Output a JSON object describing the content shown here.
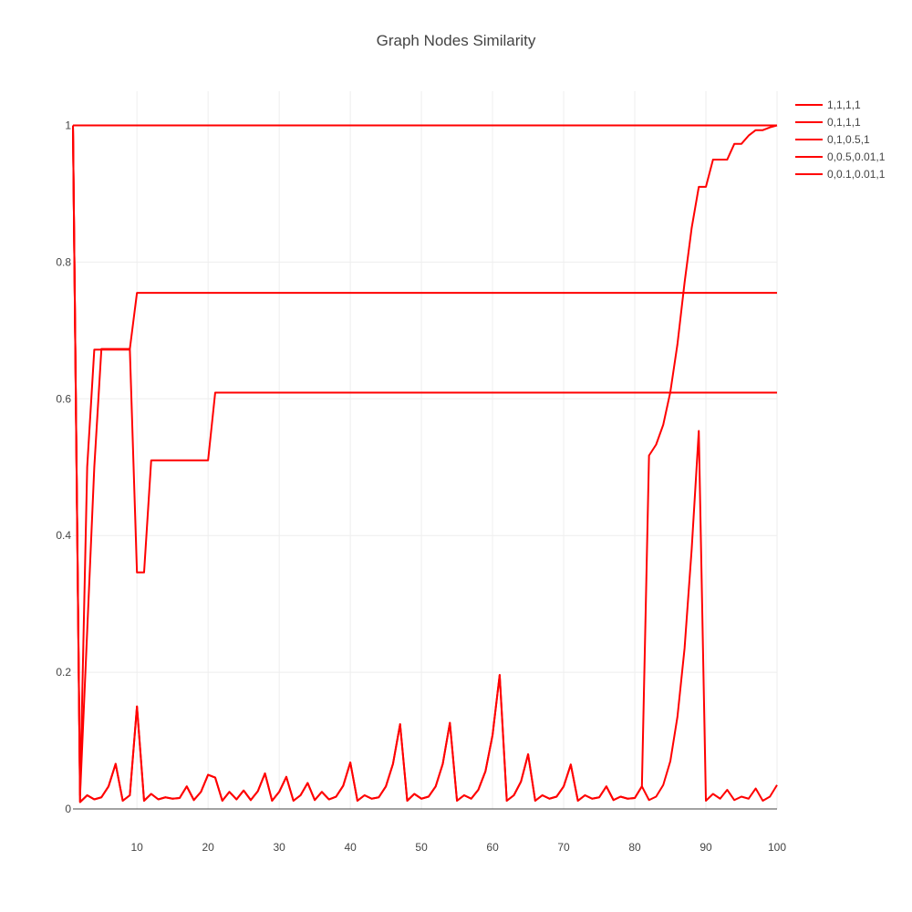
{
  "chart_data": {
    "type": "line",
    "title": "Graph Nodes Similarity",
    "xlabel": "",
    "ylabel": "",
    "xlim": [
      1,
      100
    ],
    "ylim": [
      0,
      1.05
    ],
    "x_ticks": [
      10,
      20,
      30,
      40,
      50,
      60,
      70,
      80,
      90,
      100
    ],
    "y_ticks": [
      0,
      0.2,
      0.4,
      0.6,
      0.8,
      1
    ],
    "y_tick_labels": [
      "0",
      "0.2",
      "0.4",
      "0.6",
      "0.8",
      "1"
    ],
    "grid": true,
    "legend_position": "top-right",
    "line_color": "#ff0000",
    "series": [
      {
        "name": "1,1,1,1",
        "points": [
          [
            1,
            1
          ],
          [
            100,
            1
          ]
        ]
      },
      {
        "name": "0,1,1,1",
        "points": [
          [
            1,
            1
          ],
          [
            2,
            0.02
          ],
          [
            4,
            0.5
          ],
          [
            5,
            0.673
          ],
          [
            9,
            0.673
          ],
          [
            10,
            0.755
          ],
          [
            100,
            0.755
          ]
        ]
      },
      {
        "name": "0,1,0.5,1",
        "points": [
          [
            1,
            1
          ],
          [
            2,
            0.02
          ],
          [
            3,
            0.5
          ],
          [
            4,
            0.672
          ],
          [
            9,
            0.672
          ],
          [
            10,
            0.346
          ],
          [
            11,
            0.346
          ],
          [
            12,
            0.51
          ],
          [
            20,
            0.51
          ],
          [
            21,
            0.609
          ],
          [
            100,
            0.609
          ]
        ]
      },
      {
        "name": "0,0.5,0.01,1",
        "points": [
          [
            1,
            1
          ],
          [
            2,
            0.01
          ],
          [
            3,
            0.02
          ],
          [
            4,
            0.014
          ],
          [
            5,
            0.017
          ],
          [
            6,
            0.033
          ],
          [
            7,
            0.066
          ],
          [
            8,
            0.012
          ],
          [
            9,
            0.02
          ],
          [
            10,
            0.15
          ],
          [
            11,
            0.012
          ],
          [
            12,
            0.022
          ],
          [
            13,
            0.014
          ],
          [
            14,
            0.017
          ],
          [
            15,
            0.015
          ],
          [
            16,
            0.016
          ],
          [
            17,
            0.033
          ],
          [
            18,
            0.013
          ],
          [
            19,
            0.025
          ],
          [
            20,
            0.05
          ],
          [
            21,
            0.046
          ],
          [
            22,
            0.012
          ],
          [
            23,
            0.025
          ],
          [
            24,
            0.014
          ],
          [
            25,
            0.027
          ],
          [
            26,
            0.013
          ],
          [
            27,
            0.026
          ],
          [
            28,
            0.052
          ],
          [
            29,
            0.012
          ],
          [
            30,
            0.025
          ],
          [
            31,
            0.047
          ],
          [
            32,
            0.012
          ],
          [
            33,
            0.02
          ],
          [
            34,
            0.038
          ],
          [
            35,
            0.013
          ],
          [
            36,
            0.025
          ],
          [
            37,
            0.014
          ],
          [
            38,
            0.018
          ],
          [
            39,
            0.034
          ],
          [
            40,
            0.068
          ],
          [
            41,
            0.012
          ],
          [
            42,
            0.02
          ],
          [
            43,
            0.015
          ],
          [
            44,
            0.017
          ],
          [
            45,
            0.033
          ],
          [
            46,
            0.066
          ],
          [
            47,
            0.124
          ],
          [
            48,
            0.012
          ],
          [
            49,
            0.022
          ],
          [
            50,
            0.015
          ],
          [
            51,
            0.018
          ],
          [
            52,
            0.033
          ],
          [
            53,
            0.066
          ],
          [
            54,
            0.126
          ],
          [
            55,
            0.012
          ],
          [
            56,
            0.02
          ],
          [
            57,
            0.015
          ],
          [
            58,
            0.028
          ],
          [
            59,
            0.055
          ],
          [
            60,
            0.108
          ],
          [
            61,
            0.196
          ],
          [
            62,
            0.012
          ],
          [
            63,
            0.02
          ],
          [
            64,
            0.04
          ],
          [
            65,
            0.08
          ],
          [
            66,
            0.012
          ],
          [
            67,
            0.02
          ],
          [
            68,
            0.015
          ],
          [
            69,
            0.018
          ],
          [
            70,
            0.033
          ],
          [
            71,
            0.065
          ],
          [
            72,
            0.012
          ],
          [
            73,
            0.02
          ],
          [
            74,
            0.015
          ],
          [
            75,
            0.017
          ],
          [
            76,
            0.033
          ],
          [
            77,
            0.013
          ],
          [
            78,
            0.018
          ],
          [
            79,
            0.015
          ],
          [
            80,
            0.016
          ],
          [
            81,
            0.033
          ],
          [
            82,
            0.013
          ],
          [
            83,
            0.018
          ],
          [
            84,
            0.035
          ],
          [
            85,
            0.07
          ],
          [
            86,
            0.135
          ],
          [
            87,
            0.235
          ],
          [
            88,
            0.38
          ],
          [
            89,
            0.553
          ],
          [
            90,
            0.012
          ],
          [
            91,
            0.022
          ],
          [
            92,
            0.015
          ],
          [
            93,
            0.028
          ],
          [
            94,
            0.013
          ],
          [
            95,
            0.018
          ],
          [
            96,
            0.015
          ],
          [
            97,
            0.03
          ],
          [
            98,
            0.012
          ],
          [
            99,
            0.018
          ],
          [
            100,
            0.035
          ]
        ]
      },
      {
        "name": "0,0.1,0.01,1",
        "points": [
          [
            1,
            1
          ],
          [
            2,
            0.01
          ],
          [
            3,
            0.02
          ],
          [
            4,
            0.014
          ],
          [
            5,
            0.017
          ],
          [
            6,
            0.033
          ],
          [
            7,
            0.066
          ],
          [
            8,
            0.012
          ],
          [
            9,
            0.02
          ],
          [
            10,
            0.15
          ],
          [
            11,
            0.012
          ],
          [
            12,
            0.022
          ],
          [
            13,
            0.014
          ],
          [
            14,
            0.017
          ],
          [
            15,
            0.015
          ],
          [
            16,
            0.016
          ],
          [
            17,
            0.033
          ],
          [
            18,
            0.013
          ],
          [
            19,
            0.025
          ],
          [
            20,
            0.05
          ],
          [
            21,
            0.046
          ],
          [
            22,
            0.012
          ],
          [
            23,
            0.025
          ],
          [
            24,
            0.014
          ],
          [
            25,
            0.027
          ],
          [
            26,
            0.013
          ],
          [
            27,
            0.026
          ],
          [
            28,
            0.052
          ],
          [
            29,
            0.012
          ],
          [
            30,
            0.025
          ],
          [
            31,
            0.047
          ],
          [
            32,
            0.012
          ],
          [
            33,
            0.02
          ],
          [
            34,
            0.038
          ],
          [
            35,
            0.013
          ],
          [
            36,
            0.025
          ],
          [
            37,
            0.014
          ],
          [
            38,
            0.018
          ],
          [
            39,
            0.034
          ],
          [
            40,
            0.068
          ],
          [
            41,
            0.012
          ],
          [
            42,
            0.02
          ],
          [
            43,
            0.015
          ],
          [
            44,
            0.017
          ],
          [
            45,
            0.033
          ],
          [
            46,
            0.066
          ],
          [
            47,
            0.124
          ],
          [
            48,
            0.012
          ],
          [
            49,
            0.022
          ],
          [
            50,
            0.015
          ],
          [
            51,
            0.018
          ],
          [
            52,
            0.033
          ],
          [
            53,
            0.066
          ],
          [
            54,
            0.126
          ],
          [
            55,
            0.012
          ],
          [
            56,
            0.02
          ],
          [
            57,
            0.015
          ],
          [
            58,
            0.028
          ],
          [
            59,
            0.055
          ],
          [
            60,
            0.108
          ],
          [
            61,
            0.196
          ],
          [
            62,
            0.012
          ],
          [
            63,
            0.02
          ],
          [
            64,
            0.04
          ],
          [
            65,
            0.08
          ],
          [
            66,
            0.012
          ],
          [
            67,
            0.02
          ],
          [
            68,
            0.015
          ],
          [
            69,
            0.018
          ],
          [
            70,
            0.033
          ],
          [
            71,
            0.065
          ],
          [
            72,
            0.012
          ],
          [
            73,
            0.02
          ],
          [
            74,
            0.015
          ],
          [
            75,
            0.017
          ],
          [
            76,
            0.033
          ],
          [
            77,
            0.013
          ],
          [
            78,
            0.018
          ],
          [
            79,
            0.015
          ],
          [
            80,
            0.016
          ],
          [
            81,
            0.033
          ],
          [
            82,
            0.517
          ],
          [
            83,
            0.533
          ],
          [
            84,
            0.562
          ],
          [
            85,
            0.61
          ],
          [
            86,
            0.68
          ],
          [
            87,
            0.77
          ],
          [
            88,
            0.85
          ],
          [
            89,
            0.91
          ],
          [
            90,
            0.91
          ],
          [
            91,
            0.95
          ],
          [
            92,
            0.95
          ],
          [
            93,
            0.95
          ],
          [
            94,
            0.973
          ],
          [
            95,
            0.973
          ],
          [
            96,
            0.985
          ],
          [
            97,
            0.993
          ],
          [
            98,
            0.993
          ],
          [
            99,
            0.997
          ],
          [
            100,
            1
          ]
        ]
      }
    ]
  }
}
